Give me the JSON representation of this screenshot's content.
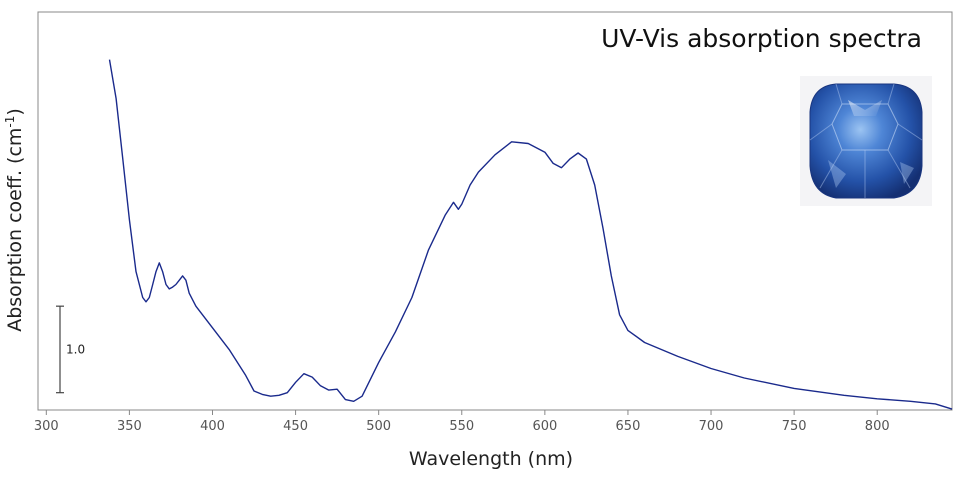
{
  "chart_data": {
    "type": "line",
    "title": "UV-Vis absorption spectra",
    "xlabel": "Wavelength (nm)",
    "ylabel_main": "Absorption coeff. (cm",
    "ylabel_sup": "-1",
    "ylabel_close": ")",
    "xlim": [
      295,
      845
    ],
    "ylim": [
      0,
      4.6
    ],
    "x_ticks": [
      300,
      350,
      400,
      450,
      500,
      550,
      600,
      650,
      700,
      750,
      800
    ],
    "x_tick_labels": [
      "300",
      "350",
      "400",
      "450",
      "500",
      "550",
      "600",
      "650",
      "700",
      "750",
      "800"
    ],
    "grid": false,
    "scale_bar": {
      "label": "1.0",
      "value": 1.0,
      "y_start": 0.2
    },
    "inset_image": "blue-sapphire-gem",
    "line_color": "#1a2a8c",
    "series": [
      {
        "name": "",
        "x": [
          338,
          342,
          346,
          350,
          354,
          358,
          360,
          362,
          364,
          366,
          368,
          370,
          372,
          374,
          376,
          378,
          380,
          382,
          384,
          386,
          390,
          400,
          410,
          420,
          425,
          430,
          435,
          440,
          445,
          450,
          455,
          460,
          465,
          470,
          475,
          480,
          485,
          490,
          500,
          510,
          520,
          530,
          540,
          545,
          548,
          550,
          555,
          560,
          570,
          580,
          590,
          600,
          605,
          610,
          615,
          620,
          625,
          630,
          635,
          640,
          645,
          650,
          660,
          680,
          700,
          720,
          750,
          780,
          800,
          820,
          835,
          845
        ],
        "y": [
          4.05,
          3.6,
          2.9,
          2.2,
          1.6,
          1.3,
          1.25,
          1.3,
          1.45,
          1.6,
          1.7,
          1.6,
          1.45,
          1.4,
          1.42,
          1.45,
          1.5,
          1.55,
          1.5,
          1.35,
          1.2,
          0.95,
          0.7,
          0.4,
          0.22,
          0.18,
          0.16,
          0.17,
          0.2,
          0.32,
          0.42,
          0.38,
          0.28,
          0.23,
          0.24,
          0.12,
          0.1,
          0.16,
          0.55,
          0.9,
          1.3,
          1.85,
          2.25,
          2.4,
          2.32,
          2.38,
          2.6,
          2.75,
          2.95,
          3.1,
          3.08,
          2.98,
          2.85,
          2.8,
          2.9,
          2.97,
          2.9,
          2.6,
          2.1,
          1.55,
          1.1,
          0.92,
          0.78,
          0.62,
          0.48,
          0.37,
          0.25,
          0.17,
          0.13,
          0.1,
          0.07,
          0.01
        ]
      }
    ]
  }
}
